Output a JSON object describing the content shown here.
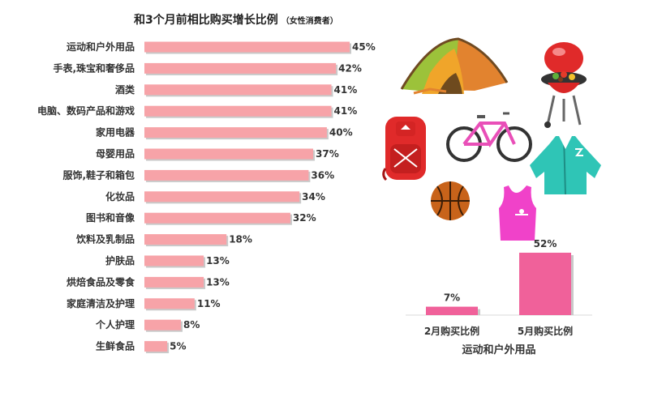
{
  "chart_data": [
    {
      "type": "bar",
      "orientation": "horizontal",
      "title": "和3个月前相比购买增长比例",
      "subtitle": "（女性消费者）",
      "categories": [
        "运动和户外用品",
        "手表,珠宝和奢侈品",
        "酒类",
        "电脑、数码产品和游戏",
        "家用电器",
        "母婴用品",
        "服饰,鞋子和箱包",
        "化妆品",
        "图书和音像",
        "饮料及乳制品",
        "护肤品",
        "烘焙食品及零食",
        "家庭清洁及护理",
        "个人护理",
        "生鲜食品"
      ],
      "values": [
        45,
        42,
        41,
        41,
        40,
        37,
        36,
        34,
        32,
        18,
        13,
        13,
        11,
        8,
        5
      ],
      "value_suffix": "%",
      "bar_color": "#f7a3a8",
      "xlim": [
        0,
        45
      ]
    },
    {
      "type": "bar",
      "categories": [
        "2月购买比例",
        "5月购买比例"
      ],
      "values": [
        7,
        52
      ],
      "value_suffix": "%",
      "xlabel": "运动和户外用品",
      "bar_color": "#f0619a",
      "ylim": [
        0,
        52
      ]
    }
  ],
  "colors": {
    "bar_left": "#f7a3a8",
    "bar_right": "#f0619a",
    "shadow": "#c9c9c9"
  },
  "illustrations": [
    "tent-icon",
    "grill-icon",
    "backpack-icon",
    "bicycle-icon",
    "jacket-icon",
    "basketball-icon",
    "tank-top-icon"
  ]
}
